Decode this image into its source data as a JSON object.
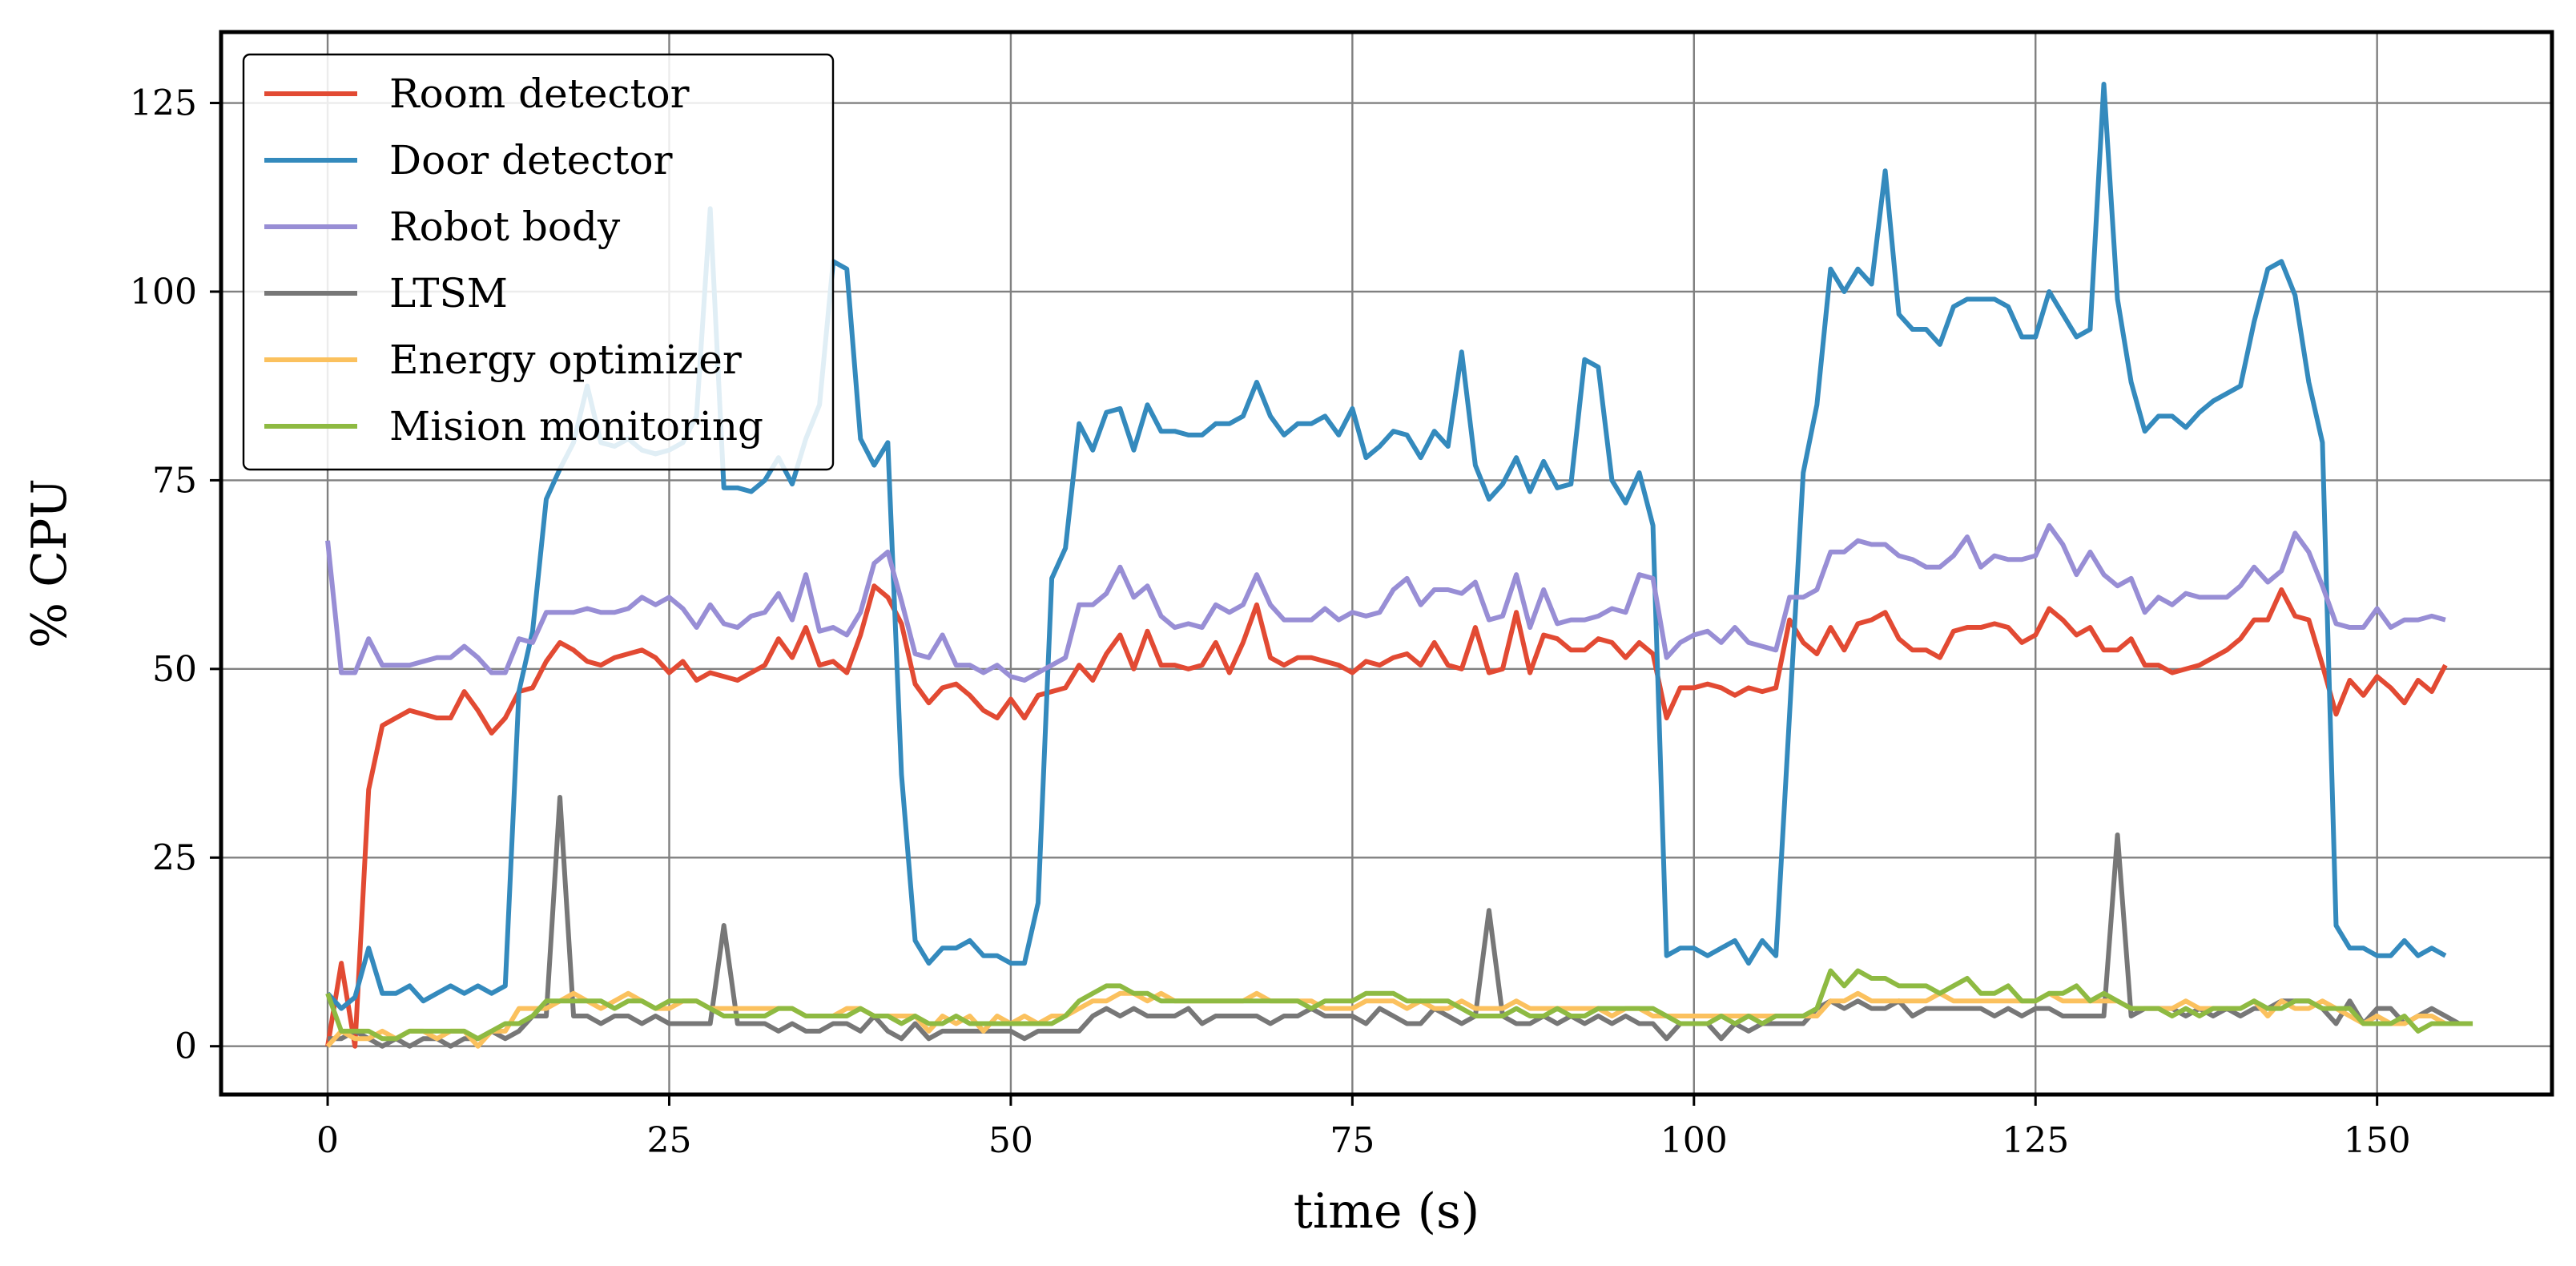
{
  "chart_data": {
    "type": "line",
    "title": "",
    "xlabel": "time (s)",
    "ylabel": "% CPU",
    "xlim": [
      -7.8,
      162.8
    ],
    "ylim": [
      -6.4,
      134.4
    ],
    "xticks": [
      0,
      25,
      50,
      75,
      100,
      125,
      150
    ],
    "yticks": [
      0,
      25,
      50,
      75,
      100,
      125
    ],
    "grid": true,
    "legend_position": "top-left",
    "series": [
      {
        "name": "Room detector",
        "color": "#E24A33",
        "x_start": 0,
        "x_step": 1,
        "values": [
          0,
          11,
          0,
          34,
          42.5,
          43.5,
          44.5,
          44,
          43.5,
          43.5,
          47,
          44.5,
          41.5,
          43.5,
          47,
          47.5,
          51,
          53.5,
          52.5,
          51,
          50.5,
          51.5,
          52,
          52.5,
          51.5,
          49.5,
          51,
          48.5,
          49.5,
          49,
          48.5,
          49.5,
          50.5,
          54,
          51.5,
          55.5,
          50.5,
          51,
          49.5,
          54.5,
          61,
          59.5,
          56,
          48,
          45.5,
          47.5,
          48,
          46.5,
          44.5,
          43.5,
          46,
          43.5,
          46.5,
          47,
          47.5,
          50.5,
          48.5,
          52,
          54.5,
          50,
          55,
          50.5,
          50.5,
          50,
          50.5,
          53.5,
          49.5,
          53.5,
          58.5,
          51.5,
          50.5,
          51.5,
          51.5,
          51,
          50.5,
          49.5,
          51,
          50.5,
          51.5,
          52,
          50.5,
          53.5,
          50.5,
          50,
          55.5,
          49.5,
          50,
          57.5,
          49.5,
          54.5,
          54,
          52.5,
          52.5,
          54,
          53.5,
          51.5,
          53.5,
          52,
          43.5,
          47.5,
          47.5,
          48,
          47.5,
          46.5,
          47.5,
          47,
          47.5,
          56.5,
          53.5,
          52,
          55.5,
          52.5,
          56,
          56.5,
          57.5,
          54,
          52.5,
          52.5,
          51.5,
          55,
          55.5,
          55.5,
          56,
          55.5,
          53.5,
          54.5,
          58,
          56.5,
          54.5,
          55.5,
          52.5,
          52.5,
          54,
          50.5,
          50.5,
          49.5,
          50,
          50.5,
          51.5,
          52.5,
          54,
          56.5,
          56.5,
          60.5,
          57,
          56.5,
          50.5,
          44,
          48.5,
          46.5,
          49,
          47.5,
          45.5,
          48.5,
          47,
          50.5
        ]
      },
      {
        "name": "Door detector",
        "color": "#348ABD",
        "x_start": 0,
        "x_step": 1,
        "values": [
          7,
          5,
          6.5,
          13,
          7,
          7,
          8,
          6,
          7,
          8,
          7,
          8,
          7,
          8,
          47,
          55,
          72.5,
          76.5,
          80,
          87.5,
          80,
          79.5,
          80.5,
          79,
          78.5,
          79,
          80,
          83.5,
          111,
          74,
          74,
          73.5,
          75,
          78,
          74.5,
          80.5,
          85,
          104,
          103,
          80.5,
          77,
          80,
          36,
          14,
          11,
          13,
          13,
          14,
          12,
          12,
          11,
          11,
          19,
          62,
          66,
          82.5,
          79,
          84,
          84.5,
          79,
          85,
          81.5,
          81.5,
          81,
          81,
          82.5,
          82.5,
          83.5,
          88,
          83.5,
          81,
          82.5,
          82.5,
          83.5,
          81,
          84.5,
          78,
          79.5,
          81.5,
          81,
          78,
          81.5,
          79.5,
          92,
          77,
          72.5,
          74.5,
          78,
          73.5,
          77.5,
          74,
          74.5,
          91,
          90,
          75,
          72,
          76,
          69,
          12,
          13,
          13,
          12,
          13,
          14,
          11,
          14,
          12,
          44,
          76,
          85,
          103,
          100,
          103,
          101,
          116,
          97,
          95,
          95,
          93,
          98,
          99,
          99,
          99,
          98,
          94,
          94,
          100,
          97,
          94,
          95,
          127.5,
          99,
          88,
          81.5,
          83.5,
          83.5,
          82,
          84,
          85.5,
          86.5,
          87.5,
          96,
          103,
          104,
          99.5,
          88,
          80,
          16,
          13,
          13,
          12,
          12,
          14,
          12,
          13,
          12
        ]
      },
      {
        "name": "Robot body",
        "color": "#988ED5",
        "x_start": 0,
        "x_step": 1,
        "values": [
          67,
          49.5,
          49.5,
          54,
          50.5,
          50.5,
          50.5,
          51,
          51.5,
          51.5,
          53,
          51.5,
          49.5,
          49.5,
          54,
          53.5,
          57.5,
          57.5,
          57.5,
          58,
          57.5,
          57.5,
          58,
          59.5,
          58.5,
          59.5,
          58,
          55.5,
          58.5,
          56,
          55.5,
          57,
          57.5,
          60,
          56.5,
          62.5,
          55,
          55.5,
          54.5,
          57.5,
          64,
          65.5,
          59,
          52,
          51.5,
          54.5,
          50.5,
          50.5,
          49.5,
          50.5,
          49,
          48.5,
          49.5,
          50.5,
          51.5,
          58.5,
          58.5,
          60,
          63.5,
          59.5,
          61,
          57,
          55.5,
          56,
          55.5,
          58.5,
          57.5,
          58.5,
          62.5,
          58.5,
          56.5,
          56.5,
          56.5,
          58,
          56.5,
          57.5,
          57,
          57.5,
          60.5,
          62,
          58.5,
          60.5,
          60.5,
          60,
          61.5,
          56.5,
          57,
          62.5,
          55.5,
          60.5,
          56,
          56.5,
          56.5,
          57,
          58,
          57.5,
          62.5,
          62,
          51.5,
          53.5,
          54.5,
          55,
          53.5,
          55.5,
          53.5,
          53,
          52.5,
          59.5,
          59.5,
          60.5,
          65.5,
          65.5,
          67,
          66.5,
          66.5,
          65,
          64.5,
          63.5,
          63.5,
          65,
          67.5,
          63.5,
          65,
          64.5,
          64.5,
          65,
          69,
          66.5,
          62.5,
          65.5,
          62.5,
          61,
          62,
          57.5,
          59.5,
          58.5,
          60,
          59.5,
          59.5,
          59.5,
          61,
          63.5,
          61.5,
          63,
          68,
          65.5,
          61,
          56,
          55.5,
          55.5,
          58,
          55.5,
          56.5,
          56.5,
          57,
          56.5
        ]
      },
      {
        "name": "LTSM",
        "color": "#777777",
        "x_start": 0,
        "x_step": 1,
        "values": [
          1,
          1,
          2,
          1,
          0,
          1,
          0,
          1,
          1,
          0,
          1,
          1,
          2,
          1,
          2,
          4,
          4,
          33,
          4,
          4,
          3,
          4,
          4,
          3,
          4,
          3,
          3,
          3,
          3,
          16,
          3,
          3,
          3,
          2,
          3,
          2,
          2,
          3,
          3,
          2,
          4,
          2,
          1,
          3,
          1,
          2,
          2,
          2,
          2,
          2,
          2,
          1,
          2,
          2,
          2,
          2,
          4,
          5,
          4,
          5,
          4,
          4,
          4,
          5,
          3,
          4,
          4,
          4,
          4,
          3,
          4,
          4,
          5,
          4,
          4,
          4,
          3,
          5,
          4,
          3,
          3,
          5,
          4,
          3,
          4,
          18,
          4,
          3,
          3,
          4,
          3,
          4,
          3,
          4,
          3,
          4,
          3,
          3,
          1,
          3,
          3,
          3,
          1,
          3,
          2,
          3,
          3,
          3,
          3,
          5,
          6,
          5,
          6,
          5,
          5,
          6,
          4,
          5,
          5,
          5,
          5,
          5,
          4,
          5,
          4,
          5,
          5,
          4,
          4,
          4,
          4,
          28,
          4,
          5,
          5,
          5,
          4,
          5,
          4,
          5,
          4,
          5,
          5,
          6,
          6,
          6,
          5,
          3,
          6,
          3,
          5,
          5,
          3,
          4,
          5,
          4,
          3
        ]
      },
      {
        "name": "Energy optimizer",
        "color": "#FBC15E",
        "x_start": 0,
        "x_step": 1,
        "values": [
          0,
          2,
          1,
          1,
          2,
          1,
          2,
          2,
          1,
          2,
          2,
          0,
          2,
          2,
          5,
          5,
          5,
          6,
          7,
          6,
          5,
          6,
          7,
          6,
          5,
          5,
          6,
          6,
          5,
          5,
          5,
          5,
          5,
          5,
          5,
          4,
          4,
          4,
          5,
          5,
          4,
          4,
          4,
          4,
          2,
          4,
          3,
          4,
          2,
          4,
          3,
          4,
          3,
          4,
          4,
          5,
          6,
          6,
          7,
          7,
          6,
          7,
          6,
          6,
          6,
          6,
          6,
          6,
          7,
          6,
          6,
          6,
          6,
          5,
          5,
          5,
          6,
          6,
          6,
          5,
          6,
          5,
          5,
          6,
          5,
          5,
          5,
          6,
          5,
          5,
          5,
          5,
          5,
          5,
          4,
          5,
          5,
          4,
          4,
          4,
          4,
          4,
          4,
          4,
          4,
          4,
          4,
          4,
          4,
          4,
          6,
          6,
          7,
          6,
          6,
          6,
          6,
          6,
          7,
          6,
          6,
          6,
          6,
          6,
          6,
          6,
          7,
          6,
          6,
          6,
          6,
          6,
          5,
          5,
          5,
          5,
          6,
          5,
          5,
          5,
          5,
          6,
          4,
          6,
          5,
          5,
          6,
          5,
          4,
          3,
          4,
          3,
          3,
          4,
          4,
          3,
          3
        ]
      },
      {
        "name": "Mision monitoring",
        "color": "#8EBA42",
        "x_start": 0,
        "x_step": 1,
        "values": [
          7,
          2,
          2,
          2,
          1,
          1,
          2,
          2,
          2,
          2,
          2,
          1,
          2,
          3,
          3,
          4,
          6,
          6,
          6,
          6,
          6,
          5,
          6,
          6,
          5,
          6,
          6,
          6,
          5,
          4,
          4,
          4,
          4,
          5,
          5,
          4,
          4,
          4,
          4,
          5,
          4,
          4,
          3,
          4,
          3,
          3,
          4,
          3,
          3,
          3,
          3,
          3,
          3,
          3,
          4,
          6,
          7,
          8,
          8,
          7,
          7,
          6,
          6,
          6,
          6,
          6,
          6,
          6,
          6,
          6,
          6,
          6,
          5,
          6,
          6,
          6,
          7,
          7,
          7,
          6,
          6,
          6,
          6,
          5,
          4,
          4,
          4,
          5,
          4,
          4,
          5,
          4,
          4,
          5,
          5,
          5,
          5,
          5,
          4,
          3,
          3,
          3,
          4,
          3,
          4,
          3,
          4,
          4,
          4,
          5,
          10,
          8,
          10,
          9,
          9,
          8,
          8,
          8,
          7,
          8,
          9,
          7,
          7,
          8,
          6,
          6,
          7,
          7,
          8,
          6,
          7,
          6,
          5,
          5,
          5,
          4,
          5,
          4,
          5,
          5,
          5,
          6,
          5,
          5,
          6,
          6,
          5,
          5,
          5,
          3,
          3,
          3,
          4,
          2,
          3,
          3,
          3,
          3
        ]
      }
    ]
  }
}
